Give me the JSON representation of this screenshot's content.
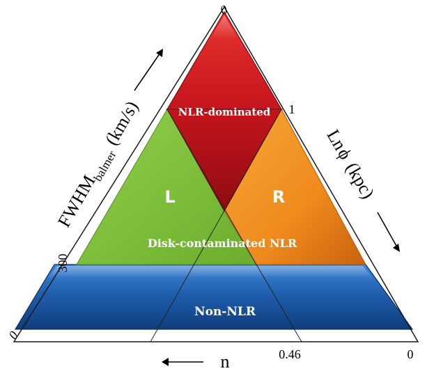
{
  "regions": {
    "nlr_dominated": "NLR-dominated",
    "left": "L",
    "right": "R",
    "disk_contaminated": "Disk-contaminated NLR",
    "non_nlr": "Non-NLR"
  },
  "axes": {
    "left_label_main": "FWHM",
    "left_label_sub": "balmer",
    "left_label_unit": "(km/s)",
    "right_label_ln": "Ln",
    "right_label_phi": "ϕ",
    "right_label_unit": "(kpc)",
    "bottom_label": "n"
  },
  "ticks": {
    "top": "0",
    "right_one": "1",
    "left_300": "300",
    "left_zero": "0",
    "bottom_046": "0.46",
    "bottom_right_zero": "0"
  },
  "colors": {
    "red": "#c4141c",
    "green": "#7cbf3a",
    "orange": "#ef8a1c",
    "blue": "#1f5fae"
  }
}
